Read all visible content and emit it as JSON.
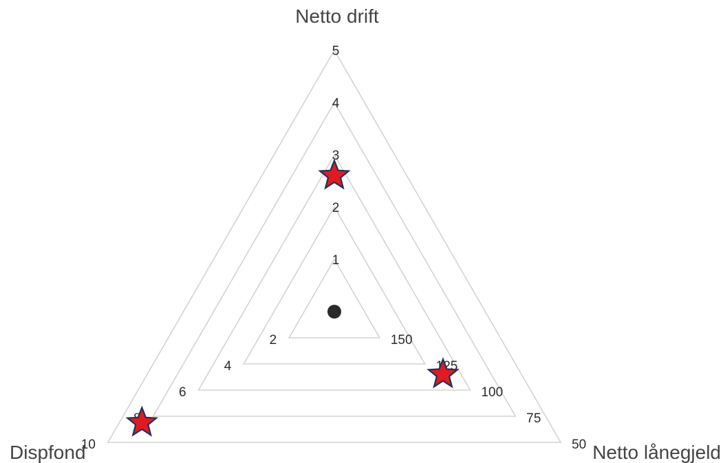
{
  "chart_data": {
    "type": "radar",
    "shape": "triangle",
    "axes": [
      {
        "name": "Netto drift",
        "position": "top",
        "ticks": [
          "1",
          "2",
          "3",
          "4",
          "5"
        ]
      },
      {
        "name": "Dispfond",
        "position": "bottom-left",
        "ticks": [
          "2",
          "4",
          "6",
          "8",
          "10"
        ]
      },
      {
        "name": "Netto lånegjeld",
        "position": "bottom-right",
        "ticks": [
          "150",
          "125",
          "100",
          "75",
          "50"
        ]
      }
    ],
    "markers": [
      {
        "axis": "Netto drift",
        "symbol": "star",
        "value": 2.6,
        "level": 2.6
      },
      {
        "axis": "Netto lånegjeld",
        "symbol": "star",
        "value": 115,
        "level": 2.4
      },
      {
        "axis": "Dispfond",
        "symbol": "star",
        "value": 8.5,
        "level": 4.25
      }
    ],
    "center_marker": {
      "symbol": "dot"
    },
    "levels": 5,
    "grid": true,
    "colors": {
      "star_fill": "#e11a22",
      "star_stroke": "#1f3358",
      "grid": "#d3d3d3",
      "dot": "#2a2a2a"
    }
  }
}
